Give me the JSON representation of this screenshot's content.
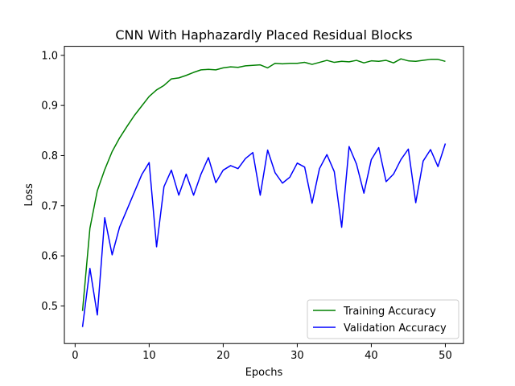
{
  "chart_data": {
    "type": "line",
    "title": "CNN With Haphazardly Placed Residual Blocks",
    "xlabel": "Epochs",
    "ylabel": "Loss",
    "xlim": [
      -1.45,
      52.45
    ],
    "ylim": [
      0.425,
      1.018
    ],
    "xticks": [
      0,
      10,
      20,
      30,
      40,
      50
    ],
    "yticks": [
      0.5,
      0.6,
      0.7,
      0.8,
      0.9,
      1.0
    ],
    "grid": false,
    "legend_position": "lower-right",
    "x": [
      1,
      2,
      3,
      4,
      5,
      6,
      7,
      8,
      9,
      10,
      11,
      12,
      13,
      14,
      15,
      16,
      17,
      18,
      19,
      20,
      21,
      22,
      23,
      24,
      25,
      26,
      27,
      28,
      29,
      30,
      31,
      32,
      33,
      34,
      35,
      36,
      37,
      38,
      39,
      40,
      41,
      42,
      43,
      44,
      45,
      46,
      47,
      48,
      49,
      50
    ],
    "series": [
      {
        "name": "Training Accuracy",
        "color": "#008000",
        "values": [
          0.49,
          0.655,
          0.73,
          0.772,
          0.808,
          0.835,
          0.858,
          0.88,
          0.899,
          0.918,
          0.931,
          0.94,
          0.953,
          0.955,
          0.96,
          0.966,
          0.971,
          0.972,
          0.971,
          0.975,
          0.977,
          0.976,
          0.979,
          0.98,
          0.981,
          0.975,
          0.984,
          0.983,
          0.984,
          0.984,
          0.986,
          0.982,
          0.986,
          0.99,
          0.986,
          0.988,
          0.987,
          0.99,
          0.985,
          0.989,
          0.988,
          0.99,
          0.985,
          0.993,
          0.989,
          0.988,
          0.99,
          0.992,
          0.992,
          0.988
        ]
      },
      {
        "name": "Validation Accuracy",
        "color": "#0000ff",
        "values": [
          0.458,
          0.575,
          0.482,
          0.676,
          0.602,
          0.657,
          0.692,
          0.727,
          0.762,
          0.786,
          0.618,
          0.738,
          0.771,
          0.721,
          0.763,
          0.721,
          0.763,
          0.796,
          0.746,
          0.771,
          0.78,
          0.774,
          0.794,
          0.806,
          0.721,
          0.811,
          0.766,
          0.745,
          0.757,
          0.785,
          0.777,
          0.705,
          0.774,
          0.802,
          0.768,
          0.657,
          0.818,
          0.783,
          0.725,
          0.792,
          0.816,
          0.748,
          0.763,
          0.792,
          0.813,
          0.706,
          0.789,
          0.812,
          0.778,
          0.824
        ]
      }
    ]
  }
}
